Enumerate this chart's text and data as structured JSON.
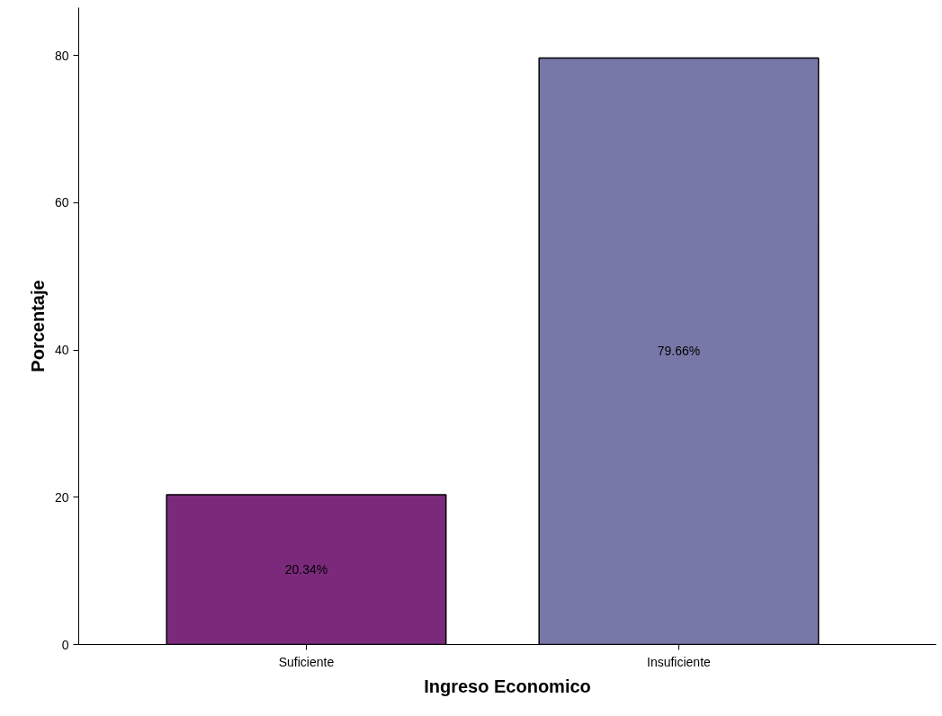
{
  "chart_data": {
    "type": "bar",
    "xlabel": "Ingreso Economico",
    "ylabel": "Porcentaje",
    "categories": [
      "Suficiente",
      "Insuficiente"
    ],
    "values": [
      20.34,
      79.66
    ],
    "colors": [
      "#7b2a7b",
      "#7878a8"
    ],
    "value_labels": [
      "20.34%",
      "79.66%"
    ],
    "ylim": [
      0,
      86.5
    ],
    "yticks": [
      0,
      20,
      40,
      60,
      80
    ],
    "grid": false
  }
}
